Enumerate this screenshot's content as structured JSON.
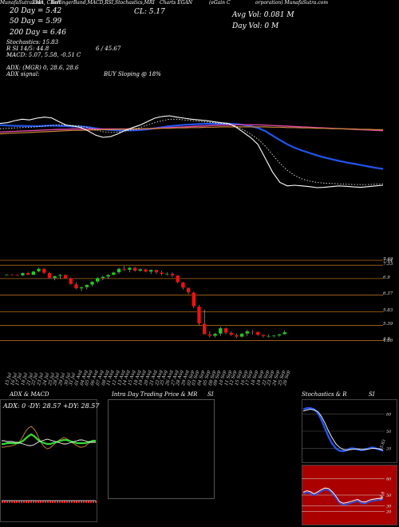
{
  "header": {
    "line1_a": "MunafaSutra.com",
    "line1_b": "EMA, Chart",
    "line1_c": "BollingerBand,MACD,RSI,Stochastics,MRI",
    "line1_d": "Charts EGAN",
    "line1_e": "(eGain C",
    "line1_f": "orporation) MunafaSutra.com",
    "ma20": "20 Day = 5.42",
    "ma50": "50 Day = 5.99",
    "ma200": "200 Day = 6.46",
    "cl": "CL: 5.17",
    "avg_vol": "Avg Vol: 0.081 M",
    "day_vol": "Day Vol: 0  M",
    "stoch": "Stochastics: 15.83",
    "rsi": "R                  SI 14/5: 44.8",
    "mri": "6 / 45.67",
    "macd": "MACD: 5.07, 5.58, -0.51 C",
    "adx": "ADX:                         (MGR) 0, 28.6, 28.6",
    "adx_signal": "ADX  signal:",
    "signal": "BUY Sloping @ 18%"
  },
  "price_axis": [
    "7.49",
    "7.44",
    "7.33",
    "6.9",
    "6.37",
    "5.83",
    "5.39",
    "4.9",
    "4.86"
  ],
  "x_labels": [
    "15 Jul",
    "16 Jul",
    "17 Jul",
    "18 Jul",
    "21 Jul",
    "22 Jul",
    "23 Jul",
    "24 Jul",
    "25 Jul",
    "28 Jul",
    "29 Jul",
    "30 Jul",
    "31 Jul",
    "01 Aug",
    "04 Aug",
    "05 Aug",
    "06 Aug",
    "07 Aug",
    "08 Aug",
    "11 Aug",
    "12 Aug",
    "13 Aug",
    "14 Aug",
    "15 Aug",
    "18 Aug",
    "19 Aug",
    "20 Aug",
    "21 Aug",
    "22 Aug",
    "25 Aug",
    "26 Aug",
    "27 Aug",
    "28 Aug",
    "29 Aug",
    "02 Sep",
    "03 Sep",
    "04 Sep",
    "05 Sep",
    "08 Sep",
    "09 Sep",
    "10 Sep",
    "11 Sep",
    "12 Sep",
    "15 Sep",
    "16 Sep",
    "17 Sep",
    "18 Sep",
    "19 Sep",
    "22 Sep",
    "23 Sep",
    "24 Sep",
    "25 Sep",
    "26 Sep"
  ],
  "panels": {
    "adx_title": "ADX  & MACD",
    "adx_values": "ADX: 0  -DY: 28.57  +DY: 28.57",
    "intraday_title": "Intra  Day Trading Price  & MR",
    "intraday_title_b": "SI",
    "stoch_title": "Stochastics & R",
    "stoch_title_b": "SI",
    "stoch_ticks": [
      "80",
      "50",
      "20"
    ],
    "stoch_value": "15.83",
    "rsi_ticks": [
      "80",
      "50",
      "30",
      "20"
    ],
    "rsi_value": "44.8"
  },
  "colors": {
    "bull": "#22cc22",
    "bear": "#ee1111",
    "ema_blue": "#2255ee",
    "ma_pink": "#dd44aa",
    "ma_orange": "#cc8833",
    "level_line": "#b06a1a",
    "rsi_bg": "#aa0000"
  },
  "chart_data": [
    {
      "type": "candlestick",
      "title": "",
      "ylim": [
        4.86,
        7.49
      ],
      "candles": [
        [
          7.02,
          7.04,
          7.0,
          7.03
        ],
        [
          7.03,
          7.05,
          7.01,
          7.02
        ],
        [
          7.02,
          7.04,
          6.98,
          7.0
        ],
        [
          7.0,
          7.1,
          6.98,
          7.08
        ],
        [
          7.08,
          7.12,
          7.0,
          7.02
        ],
        [
          7.02,
          7.15,
          7.0,
          7.13
        ],
        [
          7.13,
          7.25,
          7.1,
          7.22
        ],
        [
          7.22,
          7.24,
          7.05,
          7.08
        ],
        [
          7.08,
          7.12,
          6.9,
          6.92
        ],
        [
          6.92,
          7.0,
          6.85,
          6.98
        ],
        [
          6.98,
          7.05,
          6.9,
          7.02
        ],
        [
          7.02,
          7.04,
          6.9,
          6.92
        ],
        [
          6.92,
          6.94,
          6.7,
          6.72
        ],
        [
          6.72,
          6.78,
          6.55,
          6.58
        ],
        [
          6.58,
          6.65,
          6.5,
          6.62
        ],
        [
          6.62,
          6.72,
          6.55,
          6.7
        ],
        [
          6.7,
          6.82,
          6.65,
          6.8
        ],
        [
          6.8,
          6.95,
          6.75,
          6.92
        ],
        [
          6.92,
          7.0,
          6.85,
          6.96
        ],
        [
          6.96,
          7.05,
          6.9,
          7.02
        ],
        [
          7.02,
          7.12,
          7.0,
          7.1
        ],
        [
          7.1,
          7.25,
          7.05,
          7.22
        ],
        [
          7.22,
          7.3,
          7.15,
          7.18
        ],
        [
          7.18,
          7.28,
          7.1,
          7.25
        ],
        [
          7.25,
          7.28,
          7.12,
          7.15
        ],
        [
          7.15,
          7.24,
          7.12,
          7.2
        ],
        [
          7.2,
          7.22,
          7.1,
          7.12
        ],
        [
          7.12,
          7.2,
          7.05,
          7.18
        ],
        [
          7.18,
          7.2,
          7.05,
          7.1
        ],
        [
          7.1,
          7.15,
          7.0,
          7.05
        ],
        [
          7.05,
          7.1,
          7.0,
          7.06
        ],
        [
          7.06,
          7.1,
          6.95,
          7.0
        ],
        [
          7.0,
          7.02,
          6.75,
          6.78
        ],
        [
          6.78,
          6.8,
          6.55,
          6.6
        ],
        [
          6.6,
          6.62,
          6.4,
          6.45
        ],
        [
          6.45,
          6.48,
          5.95,
          6.0
        ],
        [
          6.0,
          6.05,
          5.4,
          5.45
        ],
        [
          5.45,
          5.9,
          5.1,
          5.1
        ],
        [
          5.1,
          5.2,
          5.0,
          5.05
        ],
        [
          5.05,
          5.15,
          5.0,
          5.12
        ],
        [
          5.12,
          5.35,
          5.05,
          5.3
        ],
        [
          5.3,
          5.32,
          5.1,
          5.15
        ],
        [
          5.15,
          5.2,
          5.05,
          5.08
        ],
        [
          5.08,
          5.12,
          4.98,
          5.02
        ],
        [
          5.02,
          5.15,
          5.0,
          5.12
        ],
        [
          5.12,
          5.25,
          5.05,
          5.2
        ],
        [
          5.2,
          5.24,
          5.1,
          5.18
        ],
        [
          5.18,
          5.2,
          5.05,
          5.08
        ],
        [
          5.08,
          5.1,
          5.0,
          5.04
        ],
        [
          5.04,
          5.1,
          5.0,
          5.05
        ],
        [
          5.05,
          5.08,
          5.0,
          5.06
        ],
        [
          5.06,
          5.12,
          5.02,
          5.1
        ],
        [
          5.1,
          5.22,
          5.1,
          5.17
        ]
      ],
      "levels": [
        7.49,
        7.33,
        6.9,
        6.37,
        5.83,
        5.39,
        4.9
      ]
    },
    {
      "type": "line",
      "title": "",
      "x_count": 53,
      "series": [
        {
          "values": [
            7.05,
            7.04,
            7.03,
            7.03,
            7.02,
            7.02,
            7.03,
            7.04,
            7.03,
            7.02,
            7.01,
            7.01,
            6.99,
            6.96,
            6.93,
            6.91,
            6.9,
            6.9,
            6.9,
            6.91,
            6.93,
            6.96,
            6.99,
            7.02,
            7.04,
            7.06,
            7.07,
            7.08,
            7.09,
            7.09,
            7.09,
            7.09,
            7.08,
            7.06,
            7.02,
            6.97,
            6.88,
            6.75,
            6.62,
            6.5,
            6.4,
            6.32,
            6.25,
            6.18,
            6.12,
            6.07,
            6.02,
            5.98,
            5.94,
            5.9,
            5.86,
            5.82,
            5.79
          ]
        },
        {
          "values": [
            6.85,
            6.86,
            6.87,
            6.88,
            6.89,
            6.9,
            6.91,
            6.92,
            6.93,
            6.93,
            6.94,
            6.94,
            6.94,
            6.94,
            6.94,
            6.94,
            6.94,
            6.94,
            6.94,
            6.94,
            6.95,
            6.96,
            6.97,
            6.98,
            6.99,
            7.0,
            7.01,
            7.02,
            7.03,
            7.04,
            7.05,
            7.05,
            7.06,
            7.06,
            7.06,
            7.06,
            7.05,
            7.04,
            7.03,
            7.02,
            7.01,
            7.0,
            6.99,
            6.98,
            6.97,
            6.96,
            6.95,
            6.94,
            6.93,
            6.92,
            6.91,
            6.9,
            6.89
          ]
        },
        {
          "values": [
            6.8,
            6.81,
            6.82,
            6.83,
            6.84,
            6.85,
            6.86,
            6.87,
            6.88,
            6.89,
            6.9,
            6.9,
            6.91,
            6.91,
            6.92,
            6.92,
            6.93,
            6.93,
            6.94,
            6.94,
            6.95,
            6.95,
            6.96,
            6.96,
            6.97,
            6.97,
            6.98,
            6.98,
            6.99,
            6.99,
            7.0,
            7.0,
            7.0,
            7.0,
            7.0,
            7.0,
            7.0,
            6.99,
            6.99,
            6.98,
            6.98,
            6.97,
            6.97,
            6.96,
            6.96,
            6.95,
            6.95,
            6.94,
            6.94,
            6.93,
            6.93,
            6.92,
            6.92
          ]
        },
        {
          "values": [
            7.1,
            7.12,
            7.18,
            7.22,
            7.2,
            7.25,
            7.28,
            7.26,
            7.15,
            7.05,
            7.02,
            6.98,
            6.88,
            6.76,
            6.7,
            6.72,
            6.8,
            6.9,
            6.98,
            7.05,
            7.15,
            7.25,
            7.3,
            7.32,
            7.28,
            7.25,
            7.22,
            7.2,
            7.18,
            7.15,
            7.12,
            7.1,
            7.0,
            6.85,
            6.7,
            6.5,
            6.1,
            5.7,
            5.4,
            5.3,
            5.32,
            5.3,
            5.28,
            5.25,
            5.26,
            5.28,
            5.3,
            5.29,
            5.27,
            5.26,
            5.28,
            5.3,
            5.32
          ]
        },
        {
          "values": [
            6.95,
            6.96,
            6.97,
            6.98,
            6.99,
            7.0,
            7.02,
            7.04,
            7.06,
            7.05,
            7.04,
            7.02,
            6.98,
            6.92,
            6.86,
            6.84,
            6.85,
            6.88,
            6.92,
            6.98,
            7.05,
            7.12,
            7.18,
            7.22,
            7.22,
            7.2,
            7.18,
            7.16,
            7.14,
            7.12,
            7.1,
            7.08,
            7.02,
            6.92,
            6.8,
            6.65,
            6.45,
            6.2,
            5.95,
            5.75,
            5.6,
            5.5,
            5.44,
            5.4,
            5.38,
            5.37,
            5.36,
            5.35,
            5.34,
            5.34,
            5.34,
            5.35,
            5.36
          ]
        }
      ]
    },
    {
      "type": "line",
      "title": "",
      "series": [
        {
          "values": [
            22,
            22,
            23,
            23,
            24,
            25,
            27,
            30,
            36,
            42,
            46,
            48,
            45,
            40,
            32,
            26,
            22,
            20,
            21,
            24,
            27,
            30,
            32,
            34,
            33,
            31,
            28,
            26,
            24,
            22,
            22,
            23,
            26,
            28,
            30,
            29
          ]
        },
        {
          "values": [
            26,
            26,
            27,
            27,
            27,
            27,
            27,
            28,
            30,
            33,
            36,
            38,
            36,
            33,
            30,
            28,
            27,
            26,
            26,
            27,
            28,
            29,
            30,
            31,
            31,
            30,
            29,
            28,
            27,
            27,
            27,
            27,
            28,
            29,
            30,
            30
          ]
        },
        {
          "values": [
            30,
            30,
            29,
            29,
            29,
            28,
            28,
            27,
            26,
            25,
            24,
            24,
            25,
            27,
            29,
            30,
            31,
            32,
            31,
            30,
            29,
            28,
            27,
            26,
            26,
            27,
            28,
            29,
            30,
            31,
            31,
            30,
            29,
            28,
            28,
            28
          ]
        }
      ]
    },
    {
      "type": "line",
      "title": "",
      "ylim": [
        0,
        100
      ],
      "series": [
        {
          "values": [
            88,
            90,
            90,
            88,
            82,
            70,
            55,
            40,
            28,
            20,
            16,
            15,
            17,
            20,
            20,
            18,
            17,
            18,
            20,
            22,
            20,
            18,
            16
          ]
        },
        {
          "values": [
            85,
            87,
            88,
            87,
            84,
            76,
            64,
            50,
            38,
            28,
            22,
            18,
            17,
            18,
            19,
            19,
            18,
            18,
            19,
            20,
            20,
            19,
            17
          ]
        }
      ]
    },
    {
      "type": "line",
      "title": "",
      "ylim": [
        0,
        100
      ],
      "series": [
        {
          "values": [
            55,
            58,
            56,
            52,
            56,
            60,
            63,
            62,
            56,
            48,
            38,
            35,
            36,
            38,
            40,
            42,
            38,
            37,
            40,
            42,
            43,
            44,
            45
          ]
        }
      ]
    }
  ]
}
